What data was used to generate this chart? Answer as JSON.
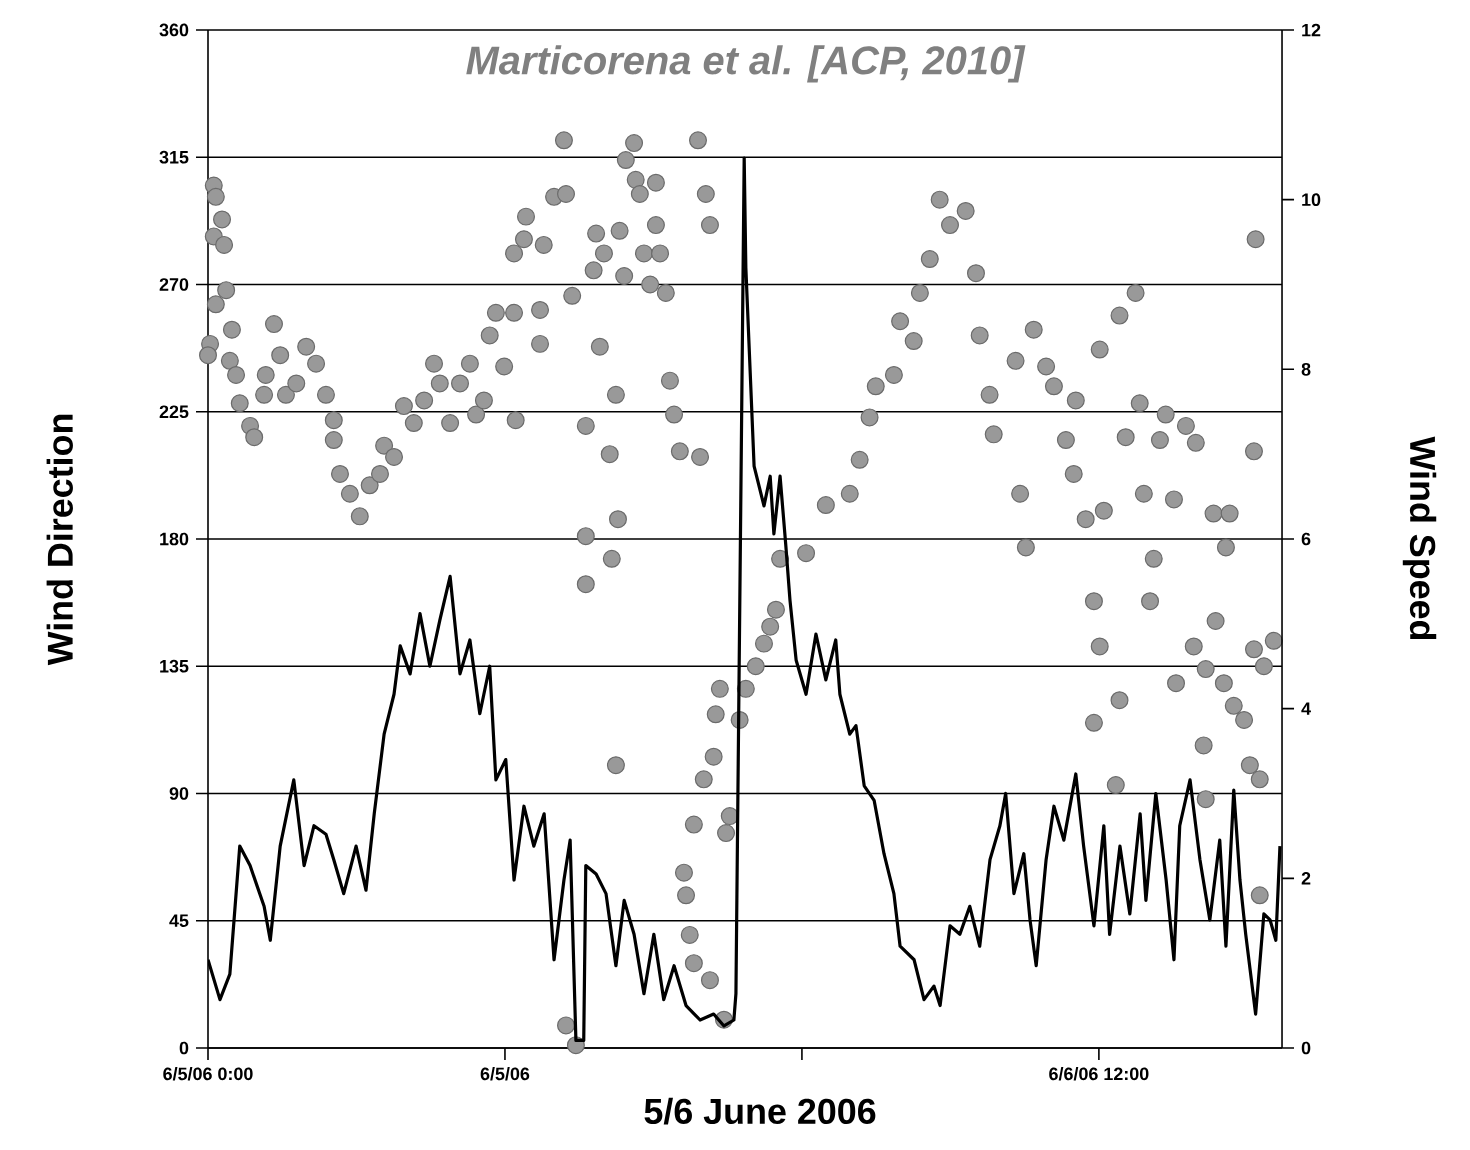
{
  "chart_data": {
    "type": "scatter",
    "title": "Marticorena et al. [ACP, 2010]",
    "xlabel": "5/6 June 2006",
    "ylabel": "Wind Direction",
    "y2label": "Wind Speed",
    "xlim": [
      "2006-06-05T00:00",
      "2006-06-06T19:24"
    ],
    "xticks": [
      {
        "value": "2006-06-05T00:00",
        "label": "6/5/06 0:00"
      },
      {
        "value": "2006-06-05T12:00",
        "label": "6/5/06"
      },
      {
        "value": "2006-06-06T00:00",
        "label": null
      },
      {
        "value": "2006-06-06T12:00",
        "label": "6/6/06 12:00"
      }
    ],
    "ylim": [
      0,
      360
    ],
    "yticks": [
      0,
      45,
      90,
      135,
      180,
      225,
      270,
      315,
      360
    ],
    "y2lim": [
      0,
      12
    ],
    "y2ticks": [
      0,
      2,
      4,
      6,
      8,
      10,
      12
    ],
    "grid": "y",
    "series": [
      {
        "color": "#999999",
        "axis": "y",
        "marker": "circle",
        "x": [
          "2006-06-05T00:14",
          "2006-06-05T00:19",
          "2006-06-05T00:34",
          "2006-06-05T00:14",
          "2006-06-05T00:39",
          "2006-06-05T00:05",
          "2006-06-05T00:00",
          "2006-06-05T00:19",
          "2006-06-05T00:44",
          "2006-06-05T00:58",
          "2006-06-05T00:53",
          "2006-06-05T01:08",
          "2006-06-05T01:17",
          "2006-06-05T01:42",
          "2006-06-05T01:52",
          "2006-06-05T02:16",
          "2006-06-05T02:20",
          "2006-06-05T02:40",
          "2006-06-05T02:55",
          "2006-06-05T03:09",
          "2006-06-05T03:34",
          "2006-06-05T03:58",
          "2006-06-05T04:22",
          "2006-06-05T04:46",
          "2006-06-05T05:05",
          "2006-06-05T05:05",
          "2006-06-05T05:20",
          "2006-06-05T05:44",
          "2006-06-05T06:08",
          "2006-06-05T06:32",
          "2006-06-05T06:57",
          "2006-06-05T07:07",
          "2006-06-05T07:31",
          "2006-06-05T07:55",
          "2006-06-05T08:19",
          "2006-06-05T08:44",
          "2006-06-05T09:08",
          "2006-06-05T09:22",
          "2006-06-05T09:47",
          "2006-06-05T10:11",
          "2006-06-05T10:35",
          "2006-06-05T10:50",
          "2006-06-05T11:09",
          "2006-06-05T11:23",
          "2006-06-05T11:38",
          "2006-06-05T11:58",
          "2006-06-05T12:22",
          "2006-06-05T12:22",
          "2006-06-05T12:46",
          "2006-06-05T12:51",
          "2006-06-05T12:26",
          "2006-06-05T13:25",
          "2006-06-05T13:25",
          "2006-06-05T13:34",
          "2006-06-05T13:59",
          "2006-06-05T14:23",
          "2006-06-05T14:28",
          "2006-06-05T14:43",
          "2006-06-05T14:28",
          "2006-06-05T14:52",
          "2006-06-05T15:16",
          "2006-06-05T15:16",
          "2006-06-05T15:16",
          "2006-06-05T15:35",
          "2006-06-05T15:41",
          "2006-06-05T15:50",
          "2006-06-05T16:00",
          "2006-06-05T16:14",
          "2006-06-05T16:19",
          "2006-06-05T16:29",
          "2006-06-05T16:29",
          "2006-06-05T16:34",
          "2006-06-05T16:38",
          "2006-06-05T16:49",
          "2006-06-05T16:53",
          "2006-06-05T17:13",
          "2006-06-05T17:17",
          "2006-06-05T17:27",
          "2006-06-05T17:37",
          "2006-06-05T17:52",
          "2006-06-05T18:06",
          "2006-06-05T18:06",
          "2006-06-05T18:16",
          "2006-06-05T18:30",
          "2006-06-05T18:40",
          "2006-06-05T18:50",
          "2006-06-05T19:04",
          "2006-06-05T19:14",
          "2006-06-05T19:19",
          "2006-06-05T19:28",
          "2006-06-05T19:38",
          "2006-06-05T19:38",
          "2006-06-05T19:48",
          "2006-06-05T19:53",
          "2006-06-05T20:02",
          "2006-06-05T20:07",
          "2006-06-05T20:17",
          "2006-06-05T20:17",
          "2006-06-05T20:26",
          "2006-06-05T20:31",
          "2006-06-05T20:41",
          "2006-06-05T20:51",
          "2006-06-05T20:56",
          "2006-06-05T21:05",
          "2006-06-05T21:29",
          "2006-06-05T21:44",
          "2006-06-05T22:08",
          "2006-06-05T22:28",
          "2006-06-05T22:43",
          "2006-06-05T22:57",
          "2006-06-05T23:07",
          "2006-06-06T00:10",
          "2006-06-06T00:58",
          "2006-06-06T01:56",
          "2006-06-06T02:20",
          "2006-06-06T02:44",
          "2006-06-06T02:59",
          "2006-06-06T03:43",
          "2006-06-06T03:58",
          "2006-06-06T04:31",
          "2006-06-06T04:46",
          "2006-06-06T05:10",
          "2006-06-06T05:34",
          "2006-06-06T05:59",
          "2006-06-06T06:37",
          "2006-06-06T07:02",
          "2006-06-06T07:11",
          "2006-06-06T07:35",
          "2006-06-06T07:45",
          "2006-06-06T08:38",
          "2006-06-06T08:49",
          "2006-06-06T09:03",
          "2006-06-06T09:22",
          "2006-06-06T09:52",
          "2006-06-06T10:11",
          "2006-06-06T10:40",
          "2006-06-06T10:59",
          "2006-06-06T11:04",
          "2006-06-06T11:28",
          "2006-06-06T11:48",
          "2006-06-06T11:48",
          "2006-06-06T12:02",
          "2006-06-06T12:02",
          "2006-06-06T12:12",
          "2006-06-06T12:41",
          "2006-06-06T12:50",
          "2006-06-06T12:50",
          "2006-06-06T13:05",
          "2006-06-06T13:29",
          "2006-06-06T13:39",
          "2006-06-06T13:49",
          "2006-06-06T14:04",
          "2006-06-06T14:13",
          "2006-06-06T14:28",
          "2006-06-06T14:42",
          "2006-06-06T15:02",
          "2006-06-06T15:07",
          "2006-06-06T15:31",
          "2006-06-06T15:50",
          "2006-06-06T15:55",
          "2006-06-06T16:14",
          "2006-06-06T16:19",
          "2006-06-06T16:19",
          "2006-06-06T16:38",
          "2006-06-06T16:43",
          "2006-06-06T17:03",
          "2006-06-06T17:08",
          "2006-06-06T17:17",
          "2006-06-06T17:27",
          "2006-06-06T17:52",
          "2006-06-06T18:06",
          "2006-06-06T18:16",
          "2006-06-06T18:16",
          "2006-06-06T18:20",
          "2006-06-06T18:30",
          "2006-06-06T18:30",
          "2006-06-06T18:40",
          "2006-06-06T19:04"
        ],
        "values": [
          305,
          301,
          293,
          287,
          284,
          249,
          245,
          263,
          268,
          254,
          243,
          238,
          228,
          220,
          216,
          231,
          238,
          256,
          245,
          231,
          235,
          248,
          242,
          231,
          222,
          215,
          203,
          196,
          188,
          199,
          203,
          213,
          209,
          227,
          221,
          229,
          242,
          235,
          221,
          235,
          242,
          224,
          229,
          252,
          260,
          241,
          260,
          281,
          286,
          294,
          222,
          261,
          249,
          284,
          301,
          321,
          302,
          266,
          8,
          1,
          181,
          164,
          220,
          275,
          288,
          248,
          281,
          210,
          173,
          231,
          100,
          187,
          289,
          273,
          314,
          320,
          307,
          302,
          281,
          270,
          306,
          291,
          281,
          267,
          236,
          224,
          211,
          62,
          54,
          40,
          30,
          79,
          321,
          209,
          95,
          302,
          291,
          24,
          103,
          118,
          127,
          10,
          76,
          82,
          116,
          127,
          135,
          143,
          149,
          155,
          173,
          175,
          192,
          196,
          208,
          223,
          234,
          238,
          257,
          250,
          267,
          279,
          300,
          291,
          296,
          274,
          252,
          231,
          217,
          243,
          196,
          177,
          254,
          241,
          234,
          215,
          203,
          229,
          187,
          158,
          115,
          247,
          142,
          190,
          93,
          259,
          123,
          216,
          267,
          228,
          196,
          158,
          173,
          215,
          224,
          194,
          129,
          220,
          142,
          214,
          107,
          134,
          88,
          189,
          151,
          129,
          177,
          189,
          121,
          116,
          100,
          211,
          141,
          286,
          95,
          54,
          135,
          144
        ]
      },
      {
        "type": "line",
        "color": "#000000",
        "axis": "y2",
        "marker": "none",
        "x": [
          "2006-06-05T00:00",
          "2006-06-05T00:29",
          "2006-06-05T00:53",
          "2006-06-05T01:17",
          "2006-06-05T01:42",
          "2006-06-05T02:16",
          "2006-06-05T02:31",
          "2006-06-05T02:55",
          "2006-06-05T03:28",
          "2006-06-05T03:53",
          "2006-06-05T04:17",
          "2006-06-05T04:46",
          "2006-06-05T05:05",
          "2006-06-05T05:29",
          "2006-06-05T05:59",
          "2006-06-05T06:23",
          "2006-06-05T06:43",
          "2006-06-05T07:07",
          "2006-06-05T07:31",
          "2006-06-05T07:46",
          "2006-06-05T08:10",
          "2006-06-05T08:34",
          "2006-06-05T08:58",
          "2006-06-05T09:22",
          "2006-06-05T09:47",
          "2006-06-05T10:11",
          "2006-06-05T10:35",
          "2006-06-05T10:59",
          "2006-06-05T11:23",
          "2006-06-05T11:38",
          "2006-06-05T12:02",
          "2006-06-05T12:22",
          "2006-06-05T12:46",
          "2006-06-05T13:10",
          "2006-06-05T13:35",
          "2006-06-05T13:59",
          "2006-06-05T14:23",
          "2006-06-05T14:38",
          "2006-06-05T14:52",
          "2006-06-05T15:11",
          "2006-06-05T15:16",
          "2006-06-05T15:41",
          "2006-06-05T16:05",
          "2006-06-05T16:29",
          "2006-06-05T16:49",
          "2006-06-05T17:13",
          "2006-06-05T17:37",
          "2006-06-05T18:01",
          "2006-06-05T18:25",
          "2006-06-05T18:50",
          "2006-06-05T19:19",
          "2006-06-05T19:53",
          "2006-06-05T20:26",
          "2006-06-05T20:51",
          "2006-06-05T21:15",
          "2006-06-05T21:20",
          "2006-06-05T21:40",
          "2006-06-05T21:44",
          "2006-06-05T22:04",
          "2006-06-05T22:28",
          "2006-06-05T22:43",
          "2006-06-05T22:52",
          "2006-06-05T23:07",
          "2006-06-05T23:21",
          "2006-06-05T23:31",
          "2006-06-05T23:46",
          "2006-06-06T00:10",
          "2006-06-06T00:34",
          "2006-06-06T00:58",
          "2006-06-06T01:22",
          "2006-06-06T01:32",
          "2006-06-06T01:56",
          "2006-06-06T02:11",
          "2006-06-06T02:31",
          "2006-06-06T02:55",
          "2006-06-06T03:19",
          "2006-06-06T03:43",
          "2006-06-06T03:58",
          "2006-06-06T04:32",
          "2006-06-06T04:56",
          "2006-06-06T05:20",
          "2006-06-06T05:35",
          "2006-06-06T05:59",
          "2006-06-06T06:23",
          "2006-06-06T06:47",
          "2006-06-06T07:11",
          "2006-06-06T07:36",
          "2006-06-06T08:00",
          "2006-06-06T08:14",
          "2006-06-06T08:34",
          "2006-06-06T08:58",
          "2006-06-06T09:13",
          "2006-06-06T09:28",
          "2006-06-06T09:52",
          "2006-06-06T10:11",
          "2006-06-06T10:35",
          "2006-06-06T11:04",
          "2006-06-06T11:23",
          "2006-06-06T11:48",
          "2006-06-06T12:12",
          "2006-06-06T12:26",
          "2006-06-06T12:51",
          "2006-06-06T13:15",
          "2006-06-06T13:40",
          "2006-06-06T13:54",
          "2006-06-06T14:18",
          "2006-06-06T14:43",
          "2006-06-06T15:02",
          "2006-06-06T15:16",
          "2006-06-06T15:41",
          "2006-06-06T16:05",
          "2006-06-06T16:29",
          "2006-06-06T16:53",
          "2006-06-06T17:08",
          "2006-06-06T17:27",
          "2006-06-06T17:42",
          "2006-06-06T17:56",
          "2006-06-06T18:20",
          "2006-06-06T18:40",
          "2006-06-06T18:55",
          "2006-06-06T19:09",
          "2006-06-06T19:19"
        ],
        "values": [
          1.04,
          0.57,
          0.87,
          2.38,
          2.15,
          1.67,
          1.27,
          2.38,
          3.16,
          2.15,
          2.62,
          2.52,
          2.22,
          1.82,
          2.38,
          1.86,
          2.76,
          3.7,
          4.17,
          4.74,
          4.41,
          5.12,
          4.5,
          5.04,
          5.56,
          4.41,
          4.81,
          3.94,
          4.5,
          3.16,
          3.4,
          1.98,
          2.85,
          2.38,
          2.76,
          1.04,
          1.98,
          2.45,
          0.09,
          0.09,
          2.15,
          2.05,
          1.82,
          0.97,
          1.74,
          1.34,
          0.64,
          1.34,
          0.57,
          0.97,
          0.5,
          0.33,
          0.4,
          0.26,
          0.33,
          0.64,
          10.49,
          9.2,
          6.86,
          6.39,
          6.74,
          6.06,
          6.74,
          5.92,
          5.28,
          4.57,
          4.17,
          4.88,
          4.34,
          4.81,
          4.17,
          3.7,
          3.8,
          3.09,
          2.92,
          2.29,
          1.82,
          1.2,
          1.04,
          0.57,
          0.73,
          0.5,
          1.44,
          1.34,
          1.67,
          1.2,
          2.22,
          2.62,
          3.0,
          1.82,
          2.29,
          1.51,
          0.97,
          2.22,
          2.85,
          2.45,
          3.23,
          2.38,
          1.44,
          2.62,
          1.34,
          2.38,
          1.58,
          2.76,
          1.74,
          3.0,
          1.98,
          1.04,
          2.62,
          3.16,
          2.22,
          1.51,
          2.45,
          1.2,
          3.04,
          1.98,
          1.34,
          0.4,
          1.58,
          1.51,
          1.27,
          2.38
        ]
      }
    ]
  }
}
